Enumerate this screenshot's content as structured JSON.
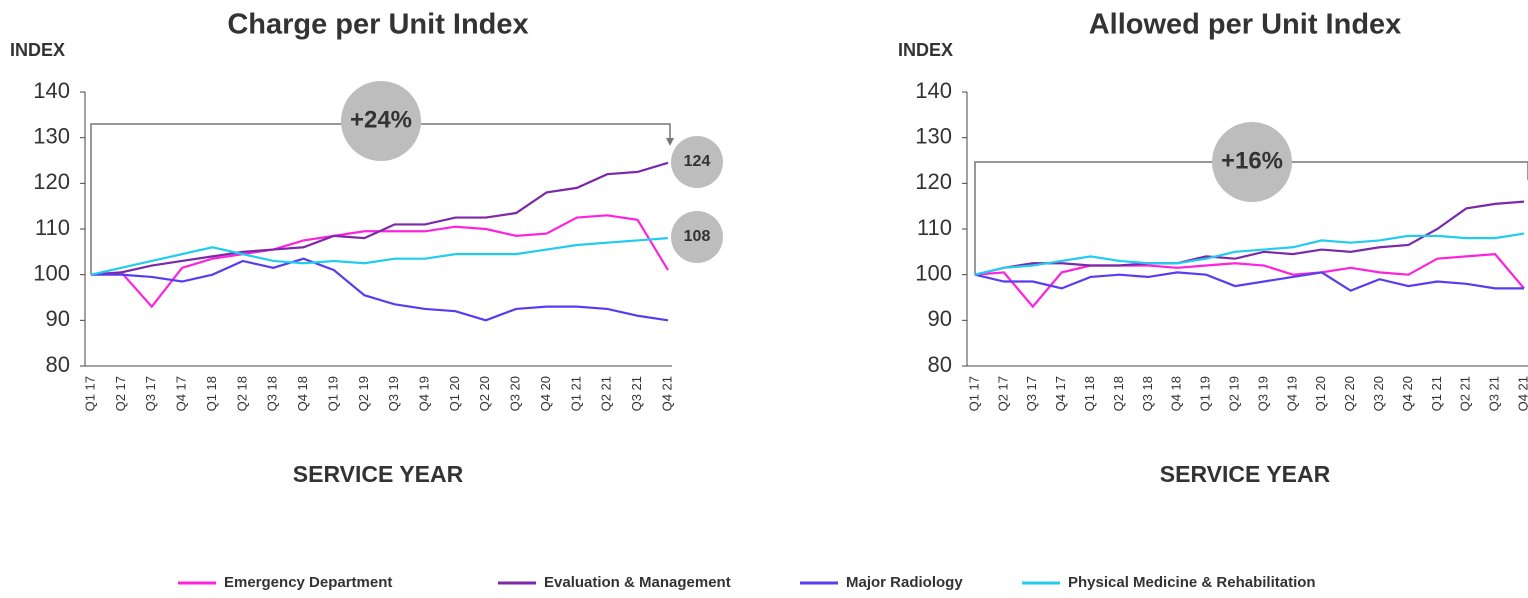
{
  "chart_data": [
    {
      "type": "line",
      "title": "Charge per Unit Index",
      "y_label": "INDEX",
      "x_label": "SERVICE YEAR",
      "categories": [
        "Q1 17",
        "Q2 17",
        "Q3 17",
        "Q4 17",
        "Q1 18",
        "Q2 18",
        "Q3 18",
        "Q4 18",
        "Q1 19",
        "Q2 19",
        "Q3 19",
        "Q4 19",
        "Q1 20",
        "Q2 20",
        "Q3 20",
        "Q4 20",
        "Q1 21",
        "Q2 21",
        "Q3 21",
        "Q4 21"
      ],
      "ylim": [
        80,
        140
      ],
      "yticks": [
        80,
        90,
        100,
        110,
        120,
        130,
        140
      ],
      "annotations": [
        "+24%",
        "124",
        "108"
      ],
      "series": [
        {
          "name": "Emergency Department",
          "color": "#ff22dd",
          "values": [
            100,
            100.5,
            93,
            101.5,
            103.5,
            104.5,
            105.5,
            107.5,
            108.5,
            109.5,
            109.5,
            109.5,
            110.5,
            110,
            108.5,
            109,
            112.5,
            113,
            112,
            101
          ]
        },
        {
          "name": "Evaluation & Management",
          "color": "#7a2aa8",
          "values": [
            100,
            100.5,
            102,
            103,
            104,
            105,
            105.5,
            106,
            108.5,
            108,
            111,
            111,
            112.5,
            112.5,
            113.5,
            118,
            119,
            122,
            122.5,
            124.5
          ]
        },
        {
          "name": "Major Radiology",
          "color": "#5a3cf0",
          "values": [
            100,
            100,
            99.5,
            98.5,
            100,
            103,
            101.5,
            103.5,
            101,
            95.5,
            93.5,
            92.5,
            92,
            90,
            92.5,
            93,
            93,
            92.5,
            91,
            90
          ]
        },
        {
          "name": "Physical Medicine & Rehabilitation",
          "color": "#22ccee",
          "values": [
            100,
            101.5,
            103,
            104.5,
            106,
            104.5,
            103,
            102.5,
            103,
            102.5,
            103.5,
            103.5,
            104.5,
            104.5,
            104.5,
            105.5,
            106.5,
            107,
            107.5,
            108
          ]
        }
      ]
    },
    {
      "type": "line",
      "title": "Allowed per Unit Index",
      "y_label": "INDEX",
      "x_label": "SERVICE YEAR",
      "categories": [
        "Q1 17",
        "Q2 17",
        "Q3 17",
        "Q4 17",
        "Q1 18",
        "Q2 18",
        "Q3 18",
        "Q4 18",
        "Q1 19",
        "Q2 19",
        "Q3 19",
        "Q4 19",
        "Q1 20",
        "Q2 20",
        "Q3 20",
        "Q4 20",
        "Q1 21",
        "Q2 21",
        "Q3 21",
        "Q4 21"
      ],
      "ylim": [
        80,
        140
      ],
      "yticks": [
        80,
        90,
        100,
        110,
        120,
        130,
        140
      ],
      "annotations": [
        "+16%"
      ],
      "series": [
        {
          "name": "Emergency Department",
          "color": "#ff22dd",
          "values": [
            100,
            100.5,
            93,
            100.5,
            102,
            102,
            102,
            101.5,
            102,
            102.5,
            102,
            100,
            100.5,
            101.5,
            100.5,
            100,
            103.5,
            104,
            104.5,
            97
          ]
        },
        {
          "name": "Evaluation & Management",
          "color": "#7a2aa8",
          "values": [
            100,
            101.5,
            102.5,
            102.5,
            102,
            102,
            102.5,
            102.5,
            104,
            103.5,
            105,
            104.5,
            105.5,
            105,
            106,
            106.5,
            110,
            114.5,
            115.5,
            116
          ]
        },
        {
          "name": "Major Radiology",
          "color": "#5a3cf0",
          "values": [
            100,
            98.5,
            98.5,
            97,
            99.5,
            100,
            99.5,
            100.5,
            100,
            97.5,
            98.5,
            99.5,
            100.5,
            96.5,
            99,
            97.5,
            98.5,
            98,
            97,
            97
          ]
        },
        {
          "name": "Physical Medicine & Rehabilitation",
          "color": "#22ccee",
          "values": [
            100,
            101.5,
            102,
            103,
            104,
            103,
            102.5,
            102.5,
            103.5,
            105,
            105.5,
            106,
            107.5,
            107,
            107.5,
            108.5,
            108.5,
            108,
            108,
            109
          ]
        }
      ]
    }
  ]
}
